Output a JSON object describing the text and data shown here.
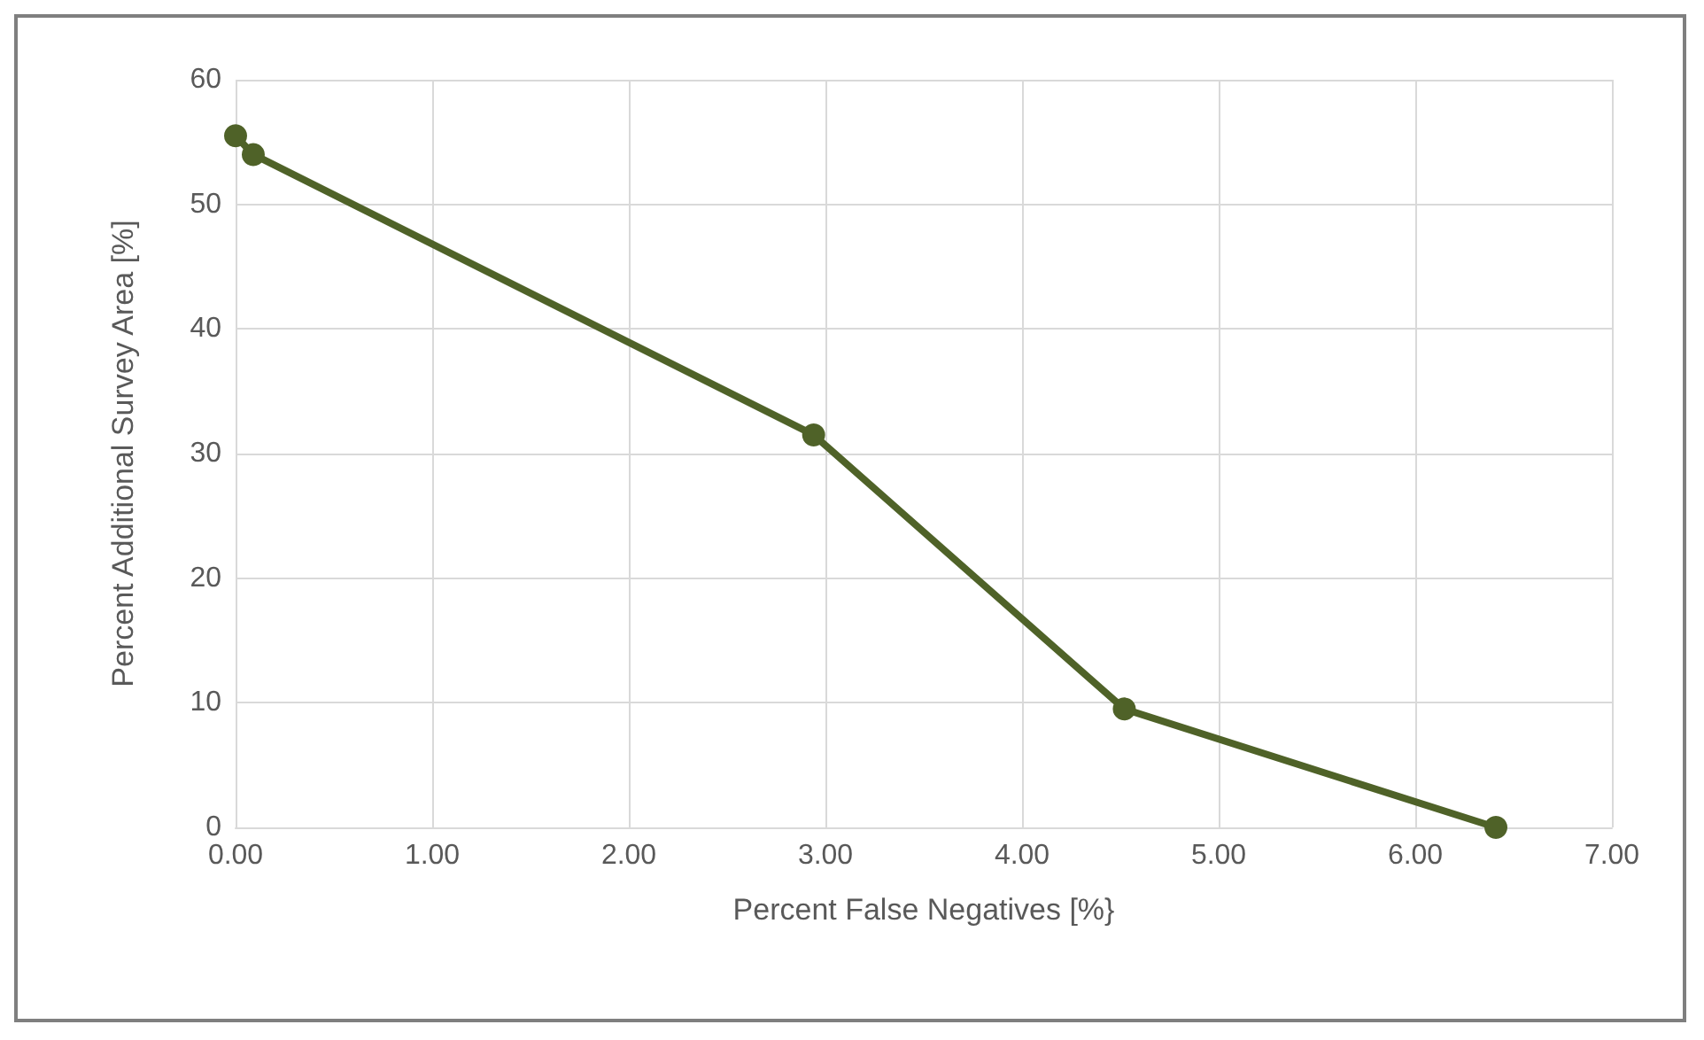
{
  "chart_data": {
    "type": "line",
    "xlabel": "Percent False Negatives [%}",
    "ylabel": "Percent Additional Survey Area [%]",
    "x": [
      0,
      0.09,
      2.94,
      4.52,
      6.41
    ],
    "series": [
      {
        "color": "#4f6228",
        "values": [
          55.5,
          54.0,
          31.5,
          9.5,
          0
        ]
      }
    ],
    "xlim": [
      0,
      7
    ],
    "xticks": [
      {
        "value": 0,
        "label": "0.00"
      },
      {
        "value": 1,
        "label": "1.00"
      },
      {
        "value": 2,
        "label": "2.00"
      },
      {
        "value": 3,
        "label": "3.00"
      },
      {
        "value": 4,
        "label": "4.00"
      },
      {
        "value": 5,
        "label": "5.00"
      },
      {
        "value": 6,
        "label": "6.00"
      },
      {
        "value": 7,
        "label": "7.00"
      }
    ],
    "ylim": [
      0,
      60
    ],
    "yticks": [
      0,
      10,
      20,
      30,
      40,
      50,
      60
    ],
    "grid": true,
    "marker": "circle",
    "line_style": "solid"
  }
}
